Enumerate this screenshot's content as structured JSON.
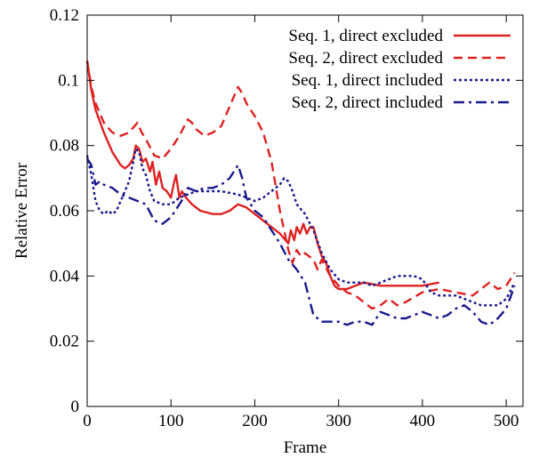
{
  "chart_data": {
    "type": "line",
    "title": "",
    "xlabel": "Frame",
    "ylabel": "Relative Error",
    "xlim": [
      0,
      520
    ],
    "ylim": [
      0,
      0.12
    ],
    "xticks": [
      0,
      100,
      200,
      300,
      400,
      500
    ],
    "xtick_labels": [
      "0",
      "100",
      "200",
      "300",
      "400",
      "500"
    ],
    "yticks": [
      0,
      0.02,
      0.04,
      0.06,
      0.08,
      0.1,
      0.12
    ],
    "ytick_labels": [
      "0",
      "0.02",
      "0.04",
      "0.06",
      "0.08",
      "0.1",
      "0.12"
    ],
    "grid": false,
    "legend_position": "top-right",
    "series": [
      {
        "name": "Seq. 1, direct excluded",
        "color": "#dd2222",
        "dash": "solid",
        "points": [
          [
            0,
            0.106
          ],
          [
            5,
            0.097
          ],
          [
            10,
            0.091
          ],
          [
            20,
            0.084
          ],
          [
            30,
            0.078
          ],
          [
            40,
            0.074
          ],
          [
            45,
            0.073
          ],
          [
            50,
            0.074
          ],
          [
            55,
            0.076
          ],
          [
            58,
            0.08
          ],
          [
            62,
            0.079
          ],
          [
            66,
            0.075
          ],
          [
            70,
            0.076
          ],
          [
            75,
            0.072
          ],
          [
            78,
            0.075
          ],
          [
            82,
            0.068
          ],
          [
            86,
            0.072
          ],
          [
            90,
            0.067
          ],
          [
            95,
            0.066
          ],
          [
            100,
            0.064
          ],
          [
            103,
            0.068
          ],
          [
            106,
            0.071
          ],
          [
            110,
            0.064
          ],
          [
            113,
            0.066
          ],
          [
            118,
            0.064
          ],
          [
            125,
            0.062
          ],
          [
            135,
            0.06
          ],
          [
            150,
            0.059
          ],
          [
            160,
            0.059
          ],
          [
            170,
            0.06
          ],
          [
            180,
            0.062
          ],
          [
            190,
            0.061
          ],
          [
            200,
            0.059
          ],
          [
            210,
            0.057
          ],
          [
            220,
            0.055
          ],
          [
            230,
            0.053
          ],
          [
            240,
            0.05
          ],
          [
            243,
            0.054
          ],
          [
            247,
            0.051
          ],
          [
            250,
            0.055
          ],
          [
            254,
            0.053
          ],
          [
            258,
            0.056
          ],
          [
            262,
            0.053
          ],
          [
            266,
            0.055
          ],
          [
            270,
            0.055
          ],
          [
            275,
            0.05
          ],
          [
            280,
            0.046
          ],
          [
            285,
            0.044
          ],
          [
            290,
            0.04
          ],
          [
            295,
            0.037
          ],
          [
            300,
            0.036
          ],
          [
            310,
            0.036
          ],
          [
            320,
            0.037
          ],
          [
            330,
            0.038
          ],
          [
            350,
            0.037
          ],
          [
            380,
            0.037
          ],
          [
            400,
            0.037
          ],
          [
            420,
            0.038
          ]
        ]
      },
      {
        "name": "Seq. 2, direct excluded",
        "color": "#dd2222",
        "dash": "dashed",
        "points": [
          [
            0,
            0.106
          ],
          [
            5,
            0.098
          ],
          [
            10,
            0.093
          ],
          [
            20,
            0.087
          ],
          [
            30,
            0.084
          ],
          [
            40,
            0.083
          ],
          [
            50,
            0.084
          ],
          [
            60,
            0.087
          ],
          [
            65,
            0.084
          ],
          [
            70,
            0.082
          ],
          [
            80,
            0.077
          ],
          [
            90,
            0.076
          ],
          [
            100,
            0.079
          ],
          [
            110,
            0.083
          ],
          [
            120,
            0.088
          ],
          [
            125,
            0.087
          ],
          [
            130,
            0.085
          ],
          [
            140,
            0.083
          ],
          [
            150,
            0.084
          ],
          [
            160,
            0.086
          ],
          [
            170,
            0.092
          ],
          [
            180,
            0.098
          ],
          [
            185,
            0.096
          ],
          [
            190,
            0.093
          ],
          [
            200,
            0.089
          ],
          [
            210,
            0.084
          ],
          [
            220,
            0.075
          ],
          [
            230,
            0.06
          ],
          [
            240,
            0.048
          ],
          [
            245,
            0.044
          ],
          [
            250,
            0.048
          ],
          [
            255,
            0.046
          ],
          [
            260,
            0.047
          ],
          [
            270,
            0.045
          ],
          [
            275,
            0.042
          ],
          [
            280,
            0.045
          ],
          [
            290,
            0.04
          ],
          [
            300,
            0.037
          ],
          [
            310,
            0.035
          ],
          [
            320,
            0.034
          ],
          [
            330,
            0.032
          ],
          [
            340,
            0.03
          ],
          [
            350,
            0.031
          ],
          [
            360,
            0.033
          ],
          [
            370,
            0.031
          ],
          [
            380,
            0.032
          ],
          [
            400,
            0.035
          ],
          [
            420,
            0.036
          ],
          [
            440,
            0.035
          ],
          [
            460,
            0.034
          ],
          [
            480,
            0.038
          ],
          [
            490,
            0.036
          ],
          [
            500,
            0.037
          ],
          [
            510,
            0.041
          ]
        ]
      },
      {
        "name": "Seq. 1, direct included",
        "color": "#1a1a8c",
        "dash": "dotted",
        "points": [
          [
            0,
            0.077
          ],
          [
            5,
            0.071
          ],
          [
            10,
            0.063
          ],
          [
            15,
            0.06
          ],
          [
            20,
            0.059
          ],
          [
            25,
            0.06
          ],
          [
            30,
            0.059
          ],
          [
            35,
            0.06
          ],
          [
            40,
            0.063
          ],
          [
            45,
            0.066
          ],
          [
            50,
            0.069
          ],
          [
            55,
            0.075
          ],
          [
            58,
            0.079
          ],
          [
            62,
            0.078
          ],
          [
            66,
            0.073
          ],
          [
            70,
            0.071
          ],
          [
            75,
            0.066
          ],
          [
            80,
            0.063
          ],
          [
            90,
            0.062
          ],
          [
            100,
            0.062
          ],
          [
            110,
            0.064
          ],
          [
            120,
            0.065
          ],
          [
            130,
            0.066
          ],
          [
            140,
            0.066
          ],
          [
            160,
            0.066
          ],
          [
            180,
            0.065
          ],
          [
            190,
            0.064
          ],
          [
            200,
            0.063
          ],
          [
            210,
            0.064
          ],
          [
            220,
            0.066
          ],
          [
            230,
            0.068
          ],
          [
            235,
            0.07
          ],
          [
            240,
            0.069
          ],
          [
            245,
            0.066
          ],
          [
            250,
            0.062
          ],
          [
            260,
            0.059
          ],
          [
            270,
            0.054
          ],
          [
            280,
            0.047
          ],
          [
            290,
            0.042
          ],
          [
            300,
            0.039
          ],
          [
            310,
            0.038
          ],
          [
            320,
            0.038
          ],
          [
            330,
            0.038
          ],
          [
            340,
            0.037
          ],
          [
            350,
            0.038
          ],
          [
            360,
            0.039
          ],
          [
            370,
            0.04
          ],
          [
            380,
            0.04
          ],
          [
            390,
            0.04
          ],
          [
            400,
            0.039
          ],
          [
            410,
            0.035
          ],
          [
            420,
            0.034
          ],
          [
            440,
            0.034
          ],
          [
            460,
            0.032
          ],
          [
            470,
            0.031
          ],
          [
            480,
            0.031
          ],
          [
            490,
            0.031
          ],
          [
            500,
            0.033
          ],
          [
            510,
            0.038
          ]
        ]
      },
      {
        "name": "Seq. 2, direct included",
        "color": "#1a1a8c",
        "dash": "dashdot",
        "points": [
          [
            0,
            0.076
          ],
          [
            5,
            0.074
          ],
          [
            10,
            0.068
          ],
          [
            15,
            0.069
          ],
          [
            20,
            0.068
          ],
          [
            30,
            0.067
          ],
          [
            40,
            0.065
          ],
          [
            50,
            0.064
          ],
          [
            60,
            0.063
          ],
          [
            70,
            0.062
          ],
          [
            80,
            0.057
          ],
          [
            90,
            0.056
          ],
          [
            100,
            0.058
          ],
          [
            110,
            0.062
          ],
          [
            115,
            0.064
          ],
          [
            120,
            0.067
          ],
          [
            130,
            0.066
          ],
          [
            140,
            0.067
          ],
          [
            150,
            0.067
          ],
          [
            160,
            0.068
          ],
          [
            170,
            0.07
          ],
          [
            175,
            0.072
          ],
          [
            180,
            0.074
          ],
          [
            185,
            0.07
          ],
          [
            190,
            0.064
          ],
          [
            200,
            0.06
          ],
          [
            210,
            0.058
          ],
          [
            220,
            0.054
          ],
          [
            230,
            0.05
          ],
          [
            240,
            0.045
          ],
          [
            250,
            0.042
          ],
          [
            260,
            0.038
          ],
          [
            265,
            0.033
          ],
          [
            270,
            0.028
          ],
          [
            280,
            0.026
          ],
          [
            300,
            0.026
          ],
          [
            310,
            0.025
          ],
          [
            320,
            0.026
          ],
          [
            330,
            0.026
          ],
          [
            340,
            0.025
          ],
          [
            350,
            0.029
          ],
          [
            360,
            0.028
          ],
          [
            370,
            0.027
          ],
          [
            380,
            0.027
          ],
          [
            390,
            0.028
          ],
          [
            400,
            0.029
          ],
          [
            410,
            0.028
          ],
          [
            420,
            0.027
          ],
          [
            430,
            0.028
          ],
          [
            440,
            0.03
          ],
          [
            450,
            0.031
          ],
          [
            460,
            0.029
          ],
          [
            470,
            0.026
          ],
          [
            480,
            0.025
          ],
          [
            490,
            0.027
          ],
          [
            500,
            0.03
          ],
          [
            510,
            0.037
          ]
        ]
      }
    ]
  }
}
